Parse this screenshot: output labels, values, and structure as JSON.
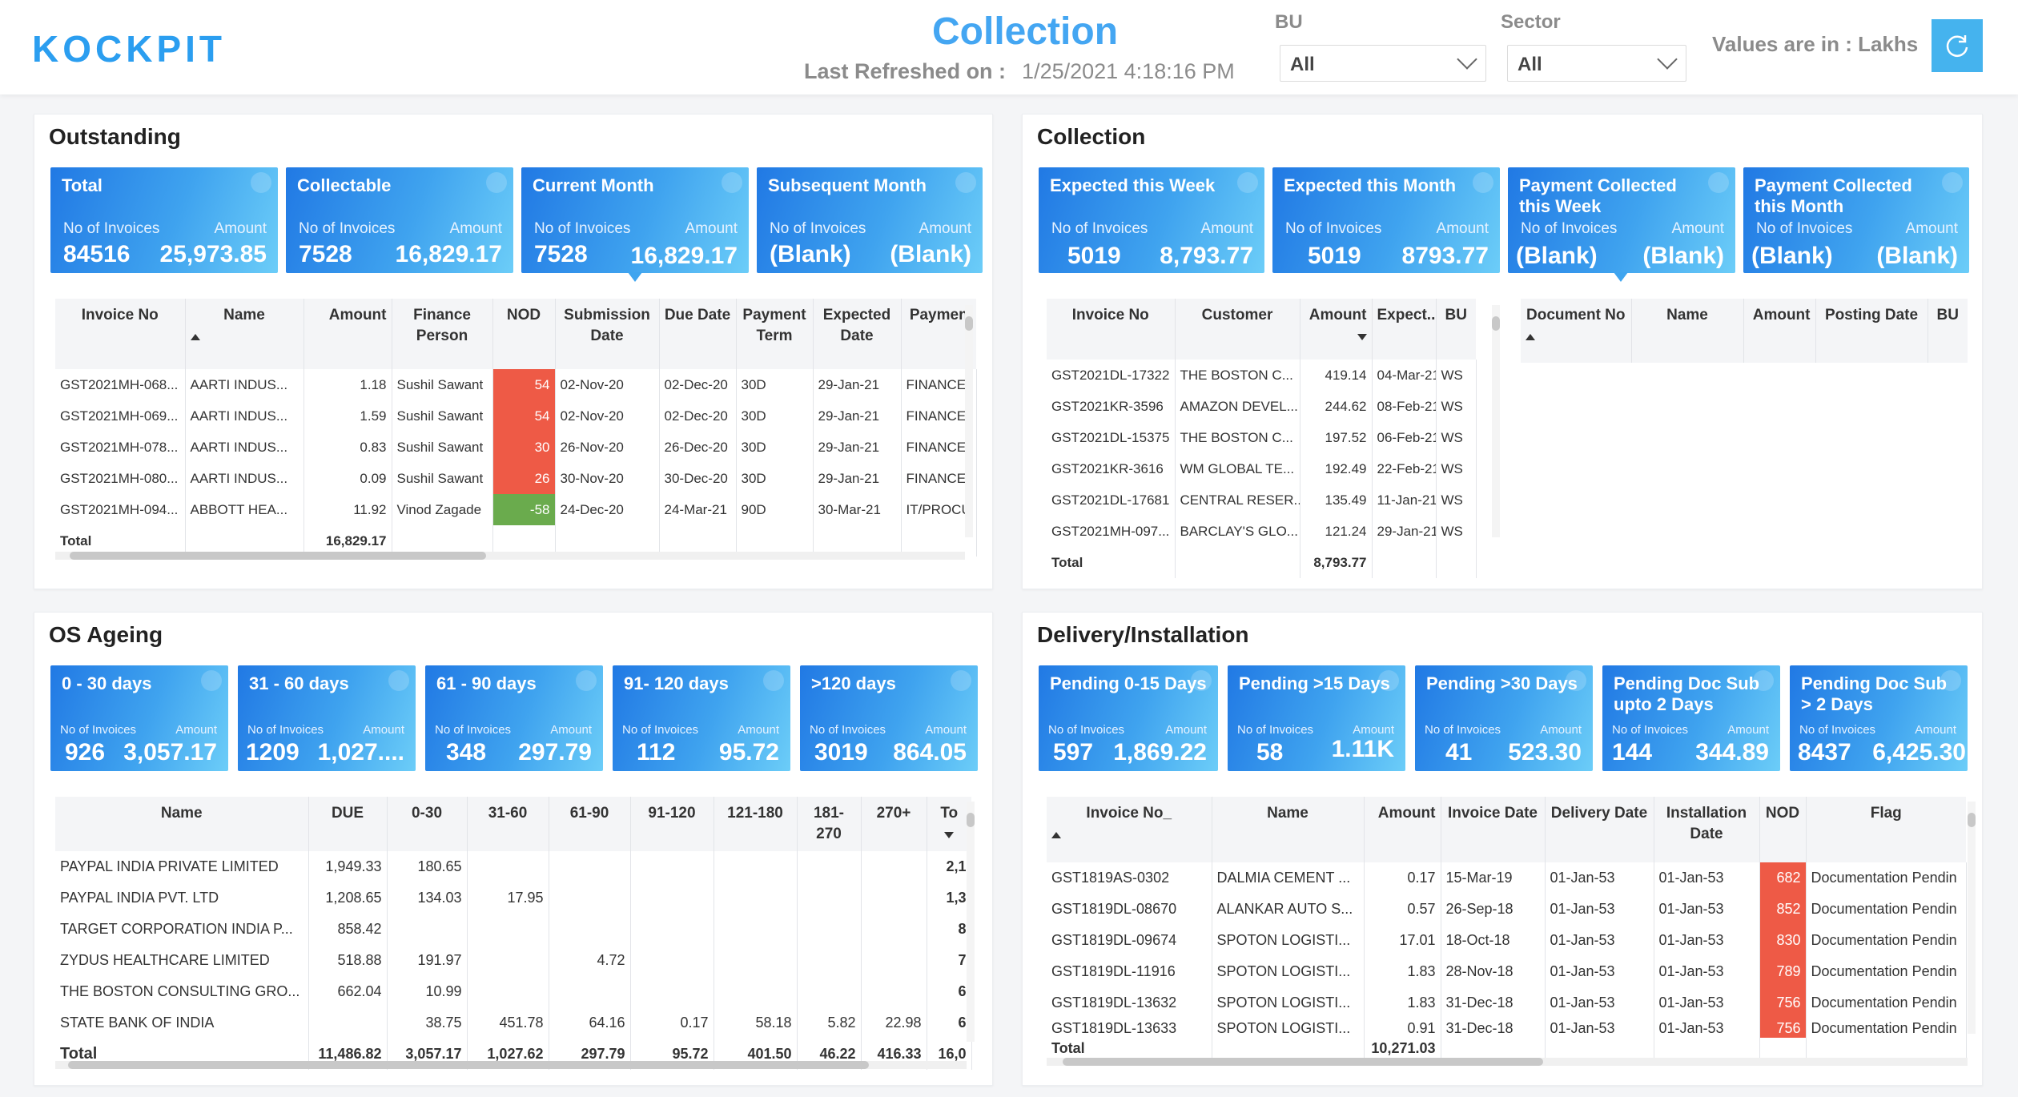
{
  "header": {
    "logo": "KOCKPIT",
    "title": "Collection",
    "refreshed_label": "Last Refreshed on :",
    "refreshed_value": "1/25/2021 4:18:16 PM",
    "bu_label": "BU",
    "bu_value": "All",
    "sector_label": "Sector",
    "sector_value": "All",
    "units": "Values are in : Lakhs"
  },
  "outstanding": {
    "title": "Outstanding",
    "cards": [
      {
        "title": "Total",
        "l1": "No of Invoices",
        "l2": "Amount",
        "v1": "84516",
        "v2": "25,973.85"
      },
      {
        "title": "Collectable",
        "l1": "No of Invoices",
        "l2": "Amount",
        "v1": "7528",
        "v2": "16,829.17"
      },
      {
        "title": "Current Month",
        "l1": "No of Invoices",
        "l2": "Amount",
        "v1": "7528",
        "v2": "16,829.17"
      },
      {
        "title": "Subsequent Month",
        "l1": "No of Invoices",
        "l2": "Amount",
        "v1": "(Blank)",
        "v2": "(Blank)"
      }
    ],
    "table": {
      "headers": [
        "Invoice No",
        "Name",
        "Amount",
        "Finance Person",
        "NOD",
        "Submission Date",
        "Due Date",
        "Payment Term",
        "Expected Date",
        "Paymen"
      ],
      "rows": [
        [
          "GST2021MH-068...",
          "AARTI INDUS...",
          "1.18",
          "Sushil Sawant",
          "54",
          "02-Nov-20",
          "02-Dec-20",
          "30D",
          "29-Jan-21",
          "FINANCE,"
        ],
        [
          "GST2021MH-069...",
          "AARTI INDUS...",
          "1.59",
          "Sushil Sawant",
          "54",
          "02-Nov-20",
          "02-Dec-20",
          "30D",
          "29-Jan-21",
          "FINANCE,"
        ],
        [
          "GST2021MH-078...",
          "AARTI INDUS...",
          "0.83",
          "Sushil Sawant",
          "30",
          "26-Nov-20",
          "26-Dec-20",
          "30D",
          "29-Jan-21",
          "FINANCE,"
        ],
        [
          "GST2021MH-080...",
          "AARTI INDUS...",
          "0.09",
          "Sushil Sawant",
          "26",
          "30-Nov-20",
          "30-Dec-20",
          "30D",
          "29-Jan-21",
          "FINANCE,"
        ],
        [
          "GST2021MH-094...",
          "ABBOTT HEA...",
          "11.92",
          "Vinod Zagade",
          "-58",
          "24-Dec-20",
          "24-Mar-21",
          "90D",
          "30-Mar-21",
          "IT/PROCU"
        ]
      ],
      "total_label": "Total",
      "total_amount": "16,829.17"
    }
  },
  "collection": {
    "title": "Collection",
    "cards": [
      {
        "title": "Expected this Week",
        "l1": "No of Invoices",
        "l2": "Amount",
        "v1": "5019",
        "v2": "8,793.77"
      },
      {
        "title": "Expected this Month",
        "l1": "No of Invoices",
        "l2": "Amount",
        "v1": "5019",
        "v2": "8793.77"
      },
      {
        "title": "Payment Collected this Week",
        "l1": "No of Invoices",
        "l2": "Amount",
        "v1": "(Blank)",
        "v2": "(Blank)"
      },
      {
        "title": "Payment Collected this Month",
        "l1": "No of Invoices",
        "l2": "Amount",
        "v1": "(Blank)",
        "v2": "(Blank)"
      }
    ],
    "table": {
      "headers": [
        "Invoice No",
        "Customer",
        "Amount",
        "Expect...",
        "BU"
      ],
      "rows": [
        [
          "GST2021DL-17322",
          "THE BOSTON C...",
          "419.14",
          "04-Mar-21",
          "WS"
        ],
        [
          "GST2021KR-3596",
          "AMAZON DEVEL...",
          "244.62",
          "08-Feb-21",
          "WS"
        ],
        [
          "GST2021DL-15375",
          "THE BOSTON C...",
          "197.52",
          "06-Feb-21",
          "WS"
        ],
        [
          "GST2021KR-3616",
          "WM GLOBAL TE...",
          "192.49",
          "22-Feb-21",
          "WS"
        ],
        [
          "GST2021DL-17681",
          "CENTRAL RESER...",
          "135.49",
          "11-Jan-21",
          "WS"
        ],
        [
          "GST2021MH-097...",
          "BARCLAY'S GLO...",
          "121.24",
          "29-Jan-21",
          "WS"
        ]
      ],
      "total_label": "Total",
      "total_amount": "8,793.77"
    },
    "table2": {
      "headers": [
        "Document No",
        "Name",
        "Amount",
        "Posting Date",
        "BU"
      ]
    }
  },
  "ageing": {
    "title": "OS Ageing",
    "cards": [
      {
        "title": "0 - 30 days",
        "l1": "No of Invoices",
        "l2": "Amount",
        "v1": "926",
        "v2": "3,057.17"
      },
      {
        "title": "31 - 60 days",
        "l1": "No of Invoices",
        "l2": "Amount",
        "v1": "1209",
        "v2": "1,027...."
      },
      {
        "title": "61 - 90 days",
        "l1": "No of Invoices",
        "l2": "Amount",
        "v1": "348",
        "v2": "297.79"
      },
      {
        "title": "91- 120 days",
        "l1": "No of Invoices",
        "l2": "Amount",
        "v1": "112",
        "v2": "95.72"
      },
      {
        "title": ">120 days",
        "l1": "No of Invoices",
        "l2": "Amount",
        "v1": "3019",
        "v2": "864.05"
      }
    ],
    "table": {
      "headers": [
        "Name",
        "DUE",
        "0-30",
        "31-60",
        "61-90",
        "91-120",
        "121-180",
        "181-270",
        "270+",
        "To"
      ],
      "rows": [
        [
          "PAYPAL INDIA PRIVATE LIMITED",
          "1,949.33",
          "180.65",
          "",
          "",
          "",
          "",
          "",
          "",
          "2,1"
        ],
        [
          "PAYPAL INDIA PVT. LTD",
          "1,208.65",
          "134.03",
          "17.95",
          "",
          "",
          "",
          "",
          "",
          "1,3"
        ],
        [
          "TARGET CORPORATION INDIA P...",
          "858.42",
          "",
          "",
          "",
          "",
          "",
          "",
          "",
          "8"
        ],
        [
          "ZYDUS HEALTHCARE LIMITED",
          "518.88",
          "191.97",
          "",
          "4.72",
          "",
          "",
          "",
          "",
          "7"
        ],
        [
          "THE BOSTON CONSULTING GRO...",
          "662.04",
          "10.99",
          "",
          "",
          "",
          "",
          "",
          "",
          "6"
        ],
        [
          "STATE BANK OF INDIA",
          "",
          "38.75",
          "451.78",
          "64.16",
          "0.17",
          "58.18",
          "5.82",
          "22.98",
          "6"
        ]
      ],
      "total": [
        "Total",
        "11,486.82",
        "3,057.17",
        "1,027.62",
        "297.79",
        "95.72",
        "401.50",
        "46.22",
        "416.33",
        "16,0"
      ]
    }
  },
  "delivery": {
    "title": "Delivery/Installation",
    "cards": [
      {
        "title": "Pending 0-15 Days",
        "l1": "No of Invoices",
        "l2": "Amount",
        "v1": "597",
        "v2": "1,869.22"
      },
      {
        "title": "Pending >15 Days",
        "l1": "No of Invoices",
        "l2": "Amount",
        "v1": "58",
        "v2": "1.11K"
      },
      {
        "title": "Pending >30 Days",
        "l1": "No of Invoices",
        "l2": "Amount",
        "v1": "41",
        "v2": "523.30"
      },
      {
        "title": "Pending Doc Sub upto 2 Days",
        "l1": "No of Invoices",
        "l2": "Amount",
        "v1": "144",
        "v2": "344.89"
      },
      {
        "title": "Pending Doc Sub > 2 Days",
        "l1": "No of Invoices",
        "l2": "Amount",
        "v1": "8437",
        "v2": "6,425.30"
      }
    ],
    "table": {
      "headers": [
        "Invoice No_",
        "Name",
        "Amount",
        "Invoice Date",
        "Delivery Date",
        "Installation Date",
        "NOD",
        "Flag"
      ],
      "rows": [
        [
          "GST1819AS-0302",
          "DALMIA CEMENT ...",
          "0.17",
          "15-Mar-19",
          "01-Jan-53",
          "01-Jan-53",
          "682",
          "Documentation Pendin"
        ],
        [
          "GST1819DL-08670",
          "ALANKAR AUTO S...",
          "0.57",
          "26-Sep-18",
          "01-Jan-53",
          "01-Jan-53",
          "852",
          "Documentation Pendin"
        ],
        [
          "GST1819DL-09674",
          "SPOTON LOGISTI...",
          "17.01",
          "18-Oct-18",
          "01-Jan-53",
          "01-Jan-53",
          "830",
          "Documentation Pendin"
        ],
        [
          "GST1819DL-11916",
          "SPOTON LOGISTI...",
          "1.83",
          "28-Nov-18",
          "01-Jan-53",
          "01-Jan-53",
          "789",
          "Documentation Pendin"
        ],
        [
          "GST1819DL-13632",
          "SPOTON LOGISTI...",
          "1.83",
          "31-Dec-18",
          "01-Jan-53",
          "01-Jan-53",
          "756",
          "Documentation Pendin"
        ],
        [
          "GST1819DL-13633",
          "SPOTON LOGISTI...",
          "0.91",
          "31-Dec-18",
          "01-Jan-53",
          "01-Jan-53",
          "756",
          "Documentation Pendin"
        ]
      ],
      "total_label": "Total",
      "total_amount": "10,271.03"
    }
  }
}
